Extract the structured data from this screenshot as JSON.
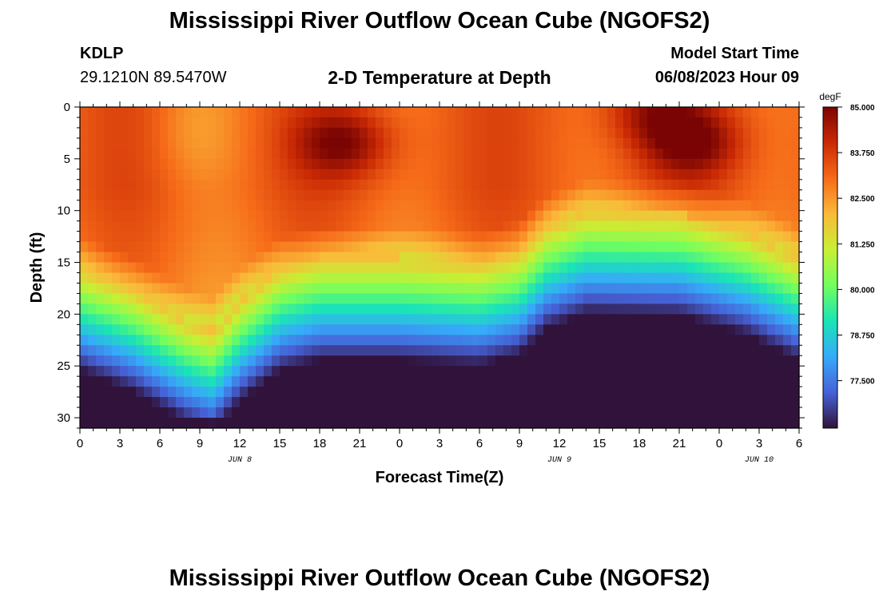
{
  "header": {
    "title": "Mississippi River Outflow Ocean Cube (NGOFS2)",
    "station_id": "KDLP",
    "coordinates": "29.1210N  89.5470W",
    "subtitle": "2-D Temperature at Depth",
    "model_start_label": "Model Start Time",
    "model_start_value": "06/08/2023 Hour 09"
  },
  "footer": {
    "title": "Mississippi River Outflow Ocean Cube (NGOFS2)"
  },
  "chart_data": {
    "type": "heatmap",
    "title": "2-D Temperature at Depth",
    "xlabel": "Forecast Time(Z)",
    "ylabel": "Depth (ft)",
    "x_range_hours": [
      0,
      54
    ],
    "x_tick_hours": [
      0,
      3,
      6,
      9,
      12,
      15,
      18,
      21,
      24,
      27,
      30,
      33,
      36,
      39,
      42,
      45,
      48,
      51,
      54
    ],
    "x_tick_labels": [
      "0",
      "3",
      "6",
      "9",
      "12",
      "15",
      "18",
      "21",
      "0",
      "3",
      "6",
      "9",
      "12",
      "15",
      "18",
      "21",
      "0",
      "3",
      "6"
    ],
    "date_labels": [
      {
        "hour": 12,
        "text": "JUN 8"
      },
      {
        "hour": 36,
        "text": "JUN 9"
      },
      {
        "hour": 51,
        "text": "JUN 10"
      }
    ],
    "y_range_ft": [
      0,
      31
    ],
    "y_ticks": [
      0,
      5,
      10,
      15,
      20,
      25,
      30
    ],
    "y_tick_labels": [
      "0",
      "5",
      "10",
      "15",
      "20",
      "25",
      "30"
    ],
    "colorbar": {
      "unit": "degF",
      "min": 76.2,
      "max": 85.0,
      "ticks": [
        85.0,
        83.75,
        82.5,
        81.25,
        80.0,
        78.75,
        77.5
      ],
      "tick_labels": [
        "85.000",
        "83.750",
        "82.500",
        "81.250",
        "80.000",
        "78.750",
        "77.500"
      ],
      "colors": [
        "#30123b",
        "#4662d7",
        "#36aaf9",
        "#1ae4b6",
        "#72fe5e",
        "#c8ef34",
        "#faba39",
        "#f66b19",
        "#ca2a04",
        "#7a0403"
      ]
    },
    "thermocline_depth_ft": [
      {
        "hour": 0,
        "depth": 15.5
      },
      {
        "hour": 4,
        "depth": 17.5
      },
      {
        "hour": 8,
        "depth": 20.5
      },
      {
        "hour": 10,
        "depth": 21.5
      },
      {
        "hour": 12,
        "depth": 18.5
      },
      {
        "hour": 15,
        "depth": 15.5
      },
      {
        "hour": 18,
        "depth": 14.5
      },
      {
        "hour": 24,
        "depth": 14.5
      },
      {
        "hour": 30,
        "depth": 15.0
      },
      {
        "hour": 33,
        "depth": 14.0
      },
      {
        "hour": 35,
        "depth": 11.5
      },
      {
        "hour": 38,
        "depth": 10.0
      },
      {
        "hour": 45,
        "depth": 10.2
      },
      {
        "hour": 50,
        "depth": 12.0
      },
      {
        "hour": 54,
        "depth": 14.5
      }
    ],
    "warm_cores": [
      {
        "hour": 19.8,
        "depth": 3.5,
        "value": 85.0
      },
      {
        "hour": 46.0,
        "depth": 3.5,
        "value": 85.0
      },
      {
        "hour": 43.0,
        "depth": 0.5,
        "value": 84.6
      }
    ],
    "cool_surface_patch": {
      "hour": 8.5,
      "depth": 2.0,
      "value": 82.7
    }
  }
}
